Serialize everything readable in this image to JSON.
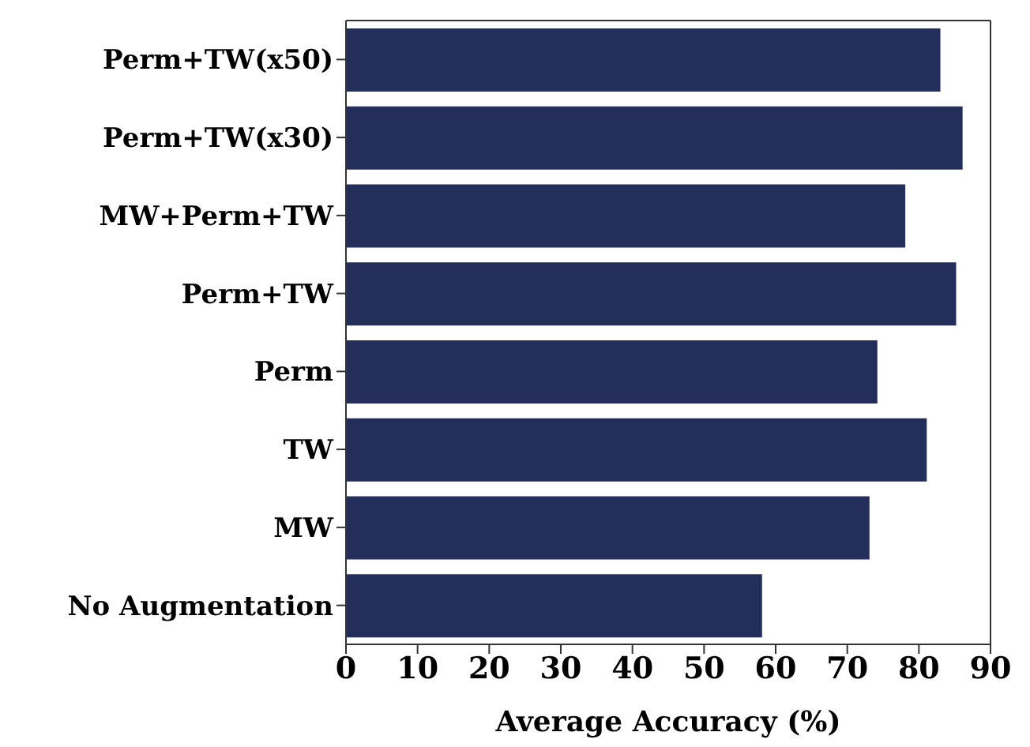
{
  "chart_data": {
    "type": "bar",
    "orientation": "horizontal",
    "xlabel": "Average Accuracy (%)",
    "categories": [
      "Perm+TW(x50)",
      "Perm+TW(x30)",
      "MW+Perm+TW",
      "Perm+TW",
      "Perm",
      "TW",
      "MW",
      "No Augmentation"
    ],
    "values": [
      83.0,
      86.1,
      78.1,
      85.2,
      74.2,
      81.1,
      73.1,
      58.1
    ],
    "color": "#232f5a",
    "xlim": [
      0,
      90
    ],
    "xticks": [
      0,
      10,
      20,
      30,
      40,
      50,
      60,
      70,
      80,
      90
    ],
    "grid": false,
    "legend": false
  }
}
